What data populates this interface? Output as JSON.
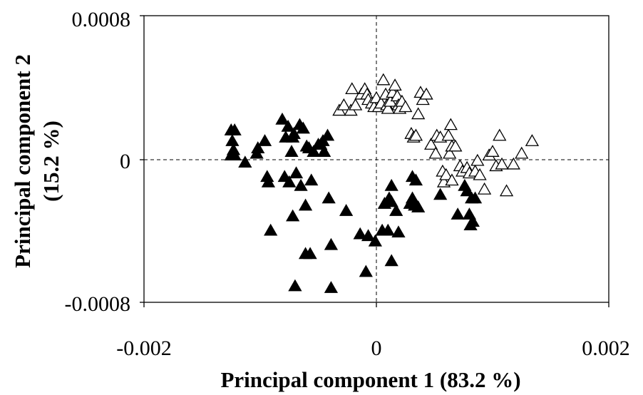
{
  "chart_data": {
    "type": "scatter",
    "xlabel": "Principal component 1 (83.2 %)",
    "ylabel_line1": "Principal component 2",
    "ylabel_line2": "(15.2 %)",
    "xlim": [
      -0.002,
      0.002
    ],
    "ylim": [
      -0.0008,
      0.0008
    ],
    "x_ticks": [
      "-0.002",
      "0",
      "0.002"
    ],
    "y_ticks": [
      "0.0008",
      "0",
      "-0.0008"
    ],
    "grid": false,
    "reference_lines": "dashed lines at x=0 and y=0",
    "series": [
      {
        "marker": "filled-triangle",
        "color": "#000000",
        "points": [
          [
            -0.00125,
            0.00016
          ],
          [
            -0.00122,
            0.00016
          ],
          [
            -0.00124,
            0.0001
          ],
          [
            -0.00123,
            5e-05
          ],
          [
            -0.00125,
            2e-05
          ],
          [
            -0.00122,
            2e-05
          ],
          [
            -0.00113,
            -2e-05
          ],
          [
            -0.00103,
            3e-05
          ],
          [
            -0.00102,
            6e-05
          ],
          [
            -0.00096,
            0.0001
          ],
          [
            -0.00094,
            -0.0001
          ],
          [
            -0.00093,
            -0.00013
          ],
          [
            -0.00091,
            -0.0004
          ],
          [
            -0.00081,
            0.00022
          ],
          [
            -0.00078,
            0.00012
          ],
          [
            -0.00079,
            -0.0001
          ],
          [
            -0.00076,
            0.00018
          ],
          [
            -0.00072,
            0.00012
          ],
          [
            -0.00073,
            4e-05
          ],
          [
            -0.00075,
            -0.00013
          ],
          [
            -0.00072,
            -0.00032
          ],
          [
            -0.0007,
            -0.00071
          ],
          [
            -0.00071,
            0.00014
          ],
          [
            -0.00069,
            -8e-05
          ],
          [
            -0.00066,
            0.00019
          ],
          [
            -0.00063,
            0.00017
          ],
          [
            -0.00065,
            -0.00015
          ],
          [
            -0.0006,
            7e-05
          ],
          [
            -0.00061,
            -0.00026
          ],
          [
            -0.00061,
            -0.00053
          ],
          [
            -0.00057,
            -0.00053
          ],
          [
            -0.00058,
            6e-05
          ],
          [
            -0.00056,
            -0.00012
          ],
          [
            -0.00054,
            4e-05
          ],
          [
            -0.0005,
            8e-05
          ],
          [
            -0.00048,
            8e-05
          ],
          [
            -0.00046,
            0.0001
          ],
          [
            -0.00045,
            4e-05
          ],
          [
            -0.00042,
            0.00013
          ],
          [
            -0.00041,
            -0.00022
          ],
          [
            -0.00039,
            -0.00048
          ],
          [
            -0.00039,
            -0.00072
          ],
          [
            -0.00026,
            -0.00029
          ],
          [
            -0.00014,
            -0.00042
          ],
          [
            -9e-05,
            -0.00063
          ],
          [
            -7e-05,
            -0.00043
          ],
          [
            -1e-05,
            -0.00046
          ],
          [
            5e-05,
            -0.0004
          ],
          [
            0.0001,
            -0.0004
          ],
          [
            7e-05,
            -0.00025
          ],
          [
            0.00011,
            -0.00022
          ],
          [
            0.00013,
            -0.00024
          ],
          [
            0.00013,
            -0.00015
          ],
          [
            0.00013,
            -0.00057
          ],
          [
            0.00017,
            -0.00029
          ],
          [
            0.00019,
            -0.00041
          ],
          [
            0.00029,
            -0.00025
          ],
          [
            0.00031,
            -0.0001
          ],
          [
            0.00031,
            -0.00022
          ],
          [
            0.00034,
            -0.00012
          ],
          [
            0.00033,
            -0.00026
          ],
          [
            0.00036,
            -0.00027
          ],
          [
            0.00055,
            -0.0002
          ],
          [
            0.0007,
            -0.00031
          ],
          [
            0.00076,
            -0.00015
          ],
          [
            0.00078,
            -0.00018
          ],
          [
            0.00082,
            -0.00022
          ],
          [
            0.0008,
            -0.00031
          ],
          [
            0.00083,
            -0.00035
          ],
          [
            0.00081,
            -0.00037
          ],
          [
            0.00085,
            -0.00022
          ]
        ]
      },
      {
        "marker": "open-triangle",
        "color": "#000000",
        "points": [
          [
            -0.00032,
            0.00027
          ],
          [
            -0.00028,
            0.0003
          ],
          [
            -0.00022,
            0.00027
          ],
          [
            -0.00021,
            0.00039
          ],
          [
            -0.00018,
            0.0003
          ],
          [
            -0.00013,
            0.00036
          ],
          [
            -0.0001,
            0.00039
          ],
          [
            -8e-05,
            0.00036
          ],
          [
            -7e-05,
            0.00033
          ],
          [
            -4e-05,
            0.00031
          ],
          [
            -2e-05,
            0.00029
          ],
          [
            0.0,
            0.00034
          ],
          [
            2e-05,
            0.00029
          ],
          [
            4e-05,
            0.00031
          ],
          [
            6e-05,
            0.00044
          ],
          [
            8e-05,
            0.00036
          ],
          [
            9e-05,
            0.0003
          ],
          [
            0.0001,
            0.00028
          ],
          [
            0.00012,
            0.00032
          ],
          [
            0.00014,
            0.00037
          ],
          [
            0.00016,
            0.00041
          ],
          [
            0.00018,
            0.00035
          ],
          [
            0.00019,
            0.0003
          ],
          [
            0.0002,
            0.00028
          ],
          [
            0.00022,
            0.00032
          ],
          [
            0.00025,
            0.00029
          ],
          [
            0.0003,
            0.00014
          ],
          [
            0.00032,
            0.00012
          ],
          [
            0.00034,
            0.00013
          ],
          [
            0.00036,
            0.00025
          ],
          [
            0.00038,
            0.00037
          ],
          [
            0.0004,
            0.00033
          ],
          [
            0.00043,
            0.00036
          ],
          [
            0.00047,
            8e-05
          ],
          [
            0.00051,
            3e-05
          ],
          [
            0.00052,
            0.00013
          ],
          [
            0.00055,
            0.00012
          ],
          [
            0.00057,
            -7e-05
          ],
          [
            0.00058,
            -0.00013
          ],
          [
            0.0006,
            -9e-05
          ],
          [
            0.00062,
            0.00013
          ],
          [
            0.00063,
            3e-05
          ],
          [
            0.00064,
            0.00019
          ],
          [
            0.00065,
            7e-05
          ],
          [
            0.00065,
            -0.00012
          ],
          [
            0.00068,
            7e-05
          ],
          [
            0.00072,
            -4e-05
          ],
          [
            0.00074,
            -7e-05
          ],
          [
            0.00078,
            -5e-05
          ],
          [
            0.0008,
            -8e-05
          ],
          [
            0.00085,
            -7e-05
          ],
          [
            0.00087,
            -1e-05
          ],
          [
            0.00089,
            -9e-05
          ],
          [
            0.00093,
            -0.00017
          ],
          [
            0.00097,
            2e-05
          ],
          [
            0.001,
            4e-05
          ],
          [
            0.00103,
            -4e-05
          ],
          [
            0.00106,
            0.00013
          ],
          [
            0.00108,
            -3e-05
          ],
          [
            0.00112,
            -0.00018
          ],
          [
            0.00118,
            -3e-05
          ],
          [
            0.00125,
            3e-05
          ],
          [
            0.00134,
            0.0001
          ]
        ]
      }
    ]
  }
}
